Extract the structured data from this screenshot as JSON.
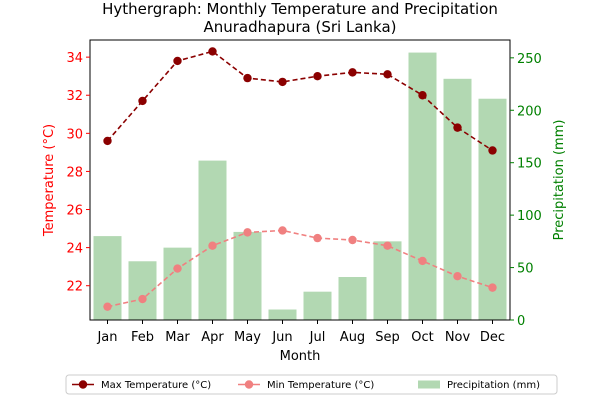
{
  "chart_data": {
    "type": "bar+line",
    "title": "Hythergraph: Monthly Temperature and Precipitation",
    "subtitle": "Anuradhapura (Sri Lanka)",
    "xlabel": "Month",
    "ylabel_left": "Temperature (°C)",
    "ylabel_right": "Precipitation (mm)",
    "categories": [
      "Jan",
      "Feb",
      "Mar",
      "Apr",
      "May",
      "Jun",
      "Jul",
      "Aug",
      "Sep",
      "Oct",
      "Nov",
      "Dec"
    ],
    "ylim_left": [
      20.2,
      34.9
    ],
    "ylim_right": [
      0,
      267
    ],
    "yticks_left": [
      22,
      24,
      26,
      28,
      30,
      32,
      34
    ],
    "yticks_right": [
      0,
      50,
      100,
      150,
      200,
      250
    ],
    "series": [
      {
        "name": "Max Temperature (°C)",
        "axis": "left",
        "kind": "line",
        "color": "#8b0000",
        "values": [
          29.6,
          31.7,
          33.8,
          34.3,
          32.9,
          32.7,
          33.0,
          33.2,
          33.1,
          32.0,
          30.3,
          29.1
        ]
      },
      {
        "name": "Min Temperature (°C)",
        "axis": "left",
        "kind": "line",
        "color": "#f08080",
        "values": [
          20.9,
          21.3,
          22.9,
          24.1,
          24.8,
          24.9,
          24.5,
          24.4,
          24.1,
          23.3,
          22.5,
          21.9
        ]
      },
      {
        "name": "Precipitation (mm)",
        "axis": "right",
        "kind": "bar",
        "color": "#b2d8b2",
        "values": [
          80,
          56,
          69,
          152,
          84,
          10,
          27,
          41,
          75,
          255,
          230,
          211
        ]
      }
    ],
    "legend_position": "bottom",
    "colors": {
      "left_axis": "#ff0000",
      "right_axis": "#008000"
    }
  }
}
